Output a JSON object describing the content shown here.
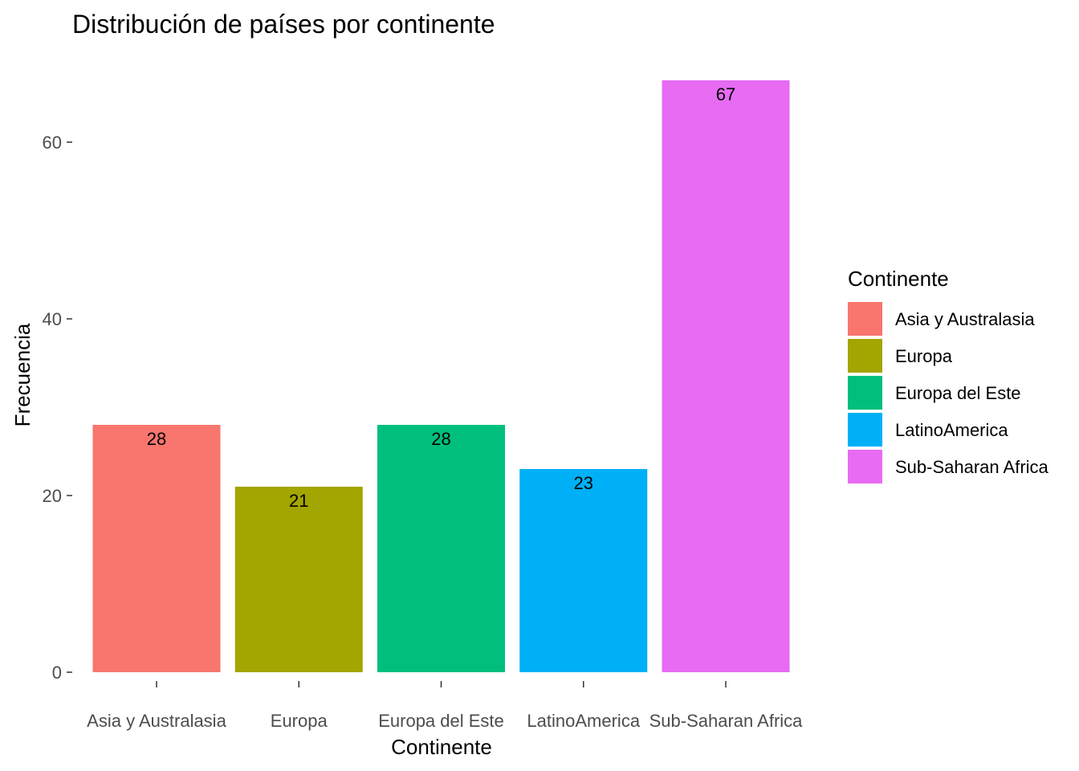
{
  "chart_data": {
    "type": "bar",
    "title": "Distribución de países por continente",
    "xlabel": "Continente",
    "ylabel": "Frecuencia",
    "categories": [
      "Asia y Australasia",
      "Europa",
      "Europa del Este",
      "LatinoAmerica",
      "Sub-Saharan Africa"
    ],
    "values": [
      28,
      21,
      28,
      23,
      67
    ],
    "colors": [
      "#F8766D",
      "#A3A500",
      "#00BF7D",
      "#00B0F6",
      "#E76BF3"
    ],
    "ylim": [
      0,
      67
    ],
    "yticks": [
      0,
      20,
      40,
      60
    ],
    "grid": false,
    "legend": {
      "title": "Continente",
      "placement": "right",
      "entries": [
        "Asia y Australasia",
        "Europa",
        "Europa del Este",
        "LatinoAmerica",
        "Sub-Saharan Africa"
      ]
    }
  }
}
